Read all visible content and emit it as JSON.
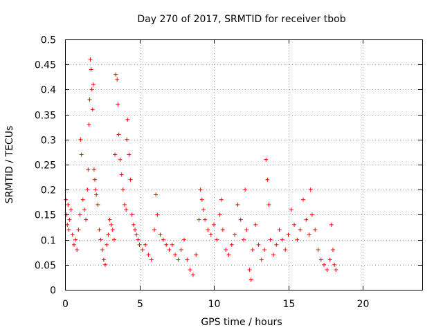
{
  "chart_data": {
    "type": "scatter",
    "title": "Day 270 of 2017, SRMTID for receiver tbob",
    "xlabel": "GPS time / hours",
    "ylabel": "SRMTID / TECUs",
    "xlim": [
      0,
      24
    ],
    "ylim": [
      0,
      0.5
    ],
    "grid": true,
    "marker": "+",
    "marker_color": "#ff0000",
    "x_ticks": [
      {
        "value": 0,
        "label": "0"
      },
      {
        "value": 5,
        "label": "5"
      },
      {
        "value": 10,
        "label": "10"
      },
      {
        "value": 15,
        "label": "15"
      },
      {
        "value": 20,
        "label": "20"
      }
    ],
    "y_ticks": [
      {
        "value": 0,
        "label": "0"
      },
      {
        "value": 0.05,
        "label": "0.05"
      },
      {
        "value": 0.1,
        "label": "0.1"
      },
      {
        "value": 0.15,
        "label": "0.15"
      },
      {
        "value": 0.2,
        "label": "0.2"
      },
      {
        "value": 0.25,
        "label": "0.25"
      },
      {
        "value": 0.3,
        "label": "0.3"
      },
      {
        "value": 0.35,
        "label": "0.35"
      },
      {
        "value": 0.4,
        "label": "0.4"
      },
      {
        "value": 0.45,
        "label": "0.45"
      },
      {
        "value": 0.5,
        "label": "0.5"
      }
    ],
    "series": [
      {
        "name": "SRMTID",
        "points": [
          [
            0.05,
            0.18
          ],
          [
            0.1,
            0.15
          ],
          [
            0.15,
            0.13
          ],
          [
            0.2,
            0.17
          ],
          [
            0.25,
            0.12
          ],
          [
            0.3,
            0.14
          ],
          [
            0.4,
            0.16
          ],
          [
            0.5,
            0.11
          ],
          [
            0.6,
            0.09
          ],
          [
            0.7,
            0.1
          ],
          [
            0.8,
            0.08
          ],
          [
            0.9,
            0.12
          ],
          [
            1.0,
            0.15
          ],
          [
            1.05,
            0.3
          ],
          [
            1.1,
            0.27
          ],
          [
            1.2,
            0.18
          ],
          [
            1.3,
            0.16
          ],
          [
            1.4,
            0.14
          ],
          [
            1.5,
            0.2
          ],
          [
            1.55,
            0.24
          ],
          [
            1.6,
            0.33
          ],
          [
            1.65,
            0.38
          ],
          [
            1.7,
            0.46
          ],
          [
            1.75,
            0.44
          ],
          [
            1.8,
            0.4
          ],
          [
            1.85,
            0.36
          ],
          [
            1.9,
            0.41
          ],
          [
            1.95,
            0.24
          ],
          [
            2.0,
            0.22
          ],
          [
            2.05,
            0.2
          ],
          [
            2.1,
            0.19
          ],
          [
            2.2,
            0.17
          ],
          [
            2.3,
            0.12
          ],
          [
            2.4,
            0.1
          ],
          [
            2.5,
            0.08
          ],
          [
            2.6,
            0.06
          ],
          [
            2.7,
            0.05
          ],
          [
            2.8,
            0.09
          ],
          [
            2.9,
            0.11
          ],
          [
            3.0,
            0.14
          ],
          [
            3.1,
            0.13
          ],
          [
            3.2,
            0.12
          ],
          [
            3.3,
            0.1
          ],
          [
            3.35,
            0.27
          ],
          [
            3.4,
            0.43
          ],
          [
            3.5,
            0.42
          ],
          [
            3.55,
            0.37
          ],
          [
            3.6,
            0.31
          ],
          [
            3.7,
            0.26
          ],
          [
            3.8,
            0.23
          ],
          [
            3.9,
            0.2
          ],
          [
            4.0,
            0.17
          ],
          [
            4.1,
            0.16
          ],
          [
            4.15,
            0.3
          ],
          [
            4.2,
            0.34
          ],
          [
            4.3,
            0.27
          ],
          [
            4.4,
            0.22
          ],
          [
            4.5,
            0.15
          ],
          [
            4.6,
            0.13
          ],
          [
            4.7,
            0.12
          ],
          [
            4.8,
            0.11
          ],
          [
            4.9,
            0.1
          ],
          [
            5.0,
            0.09
          ],
          [
            5.2,
            0.08
          ],
          [
            5.4,
            0.09
          ],
          [
            5.6,
            0.07
          ],
          [
            5.8,
            0.06
          ],
          [
            6.0,
            0.12
          ],
          [
            6.1,
            0.19
          ],
          [
            6.2,
            0.15
          ],
          [
            6.4,
            0.11
          ],
          [
            6.6,
            0.1
          ],
          [
            6.8,
            0.09
          ],
          [
            7.0,
            0.08
          ],
          [
            7.2,
            0.09
          ],
          [
            7.4,
            0.07
          ],
          [
            7.6,
            0.06
          ],
          [
            7.8,
            0.08
          ],
          [
            8.0,
            0.1
          ],
          [
            8.2,
            0.06
          ],
          [
            8.4,
            0.04
          ],
          [
            8.6,
            0.03
          ],
          [
            8.8,
            0.07
          ],
          [
            9.0,
            0.14
          ],
          [
            9.1,
            0.2
          ],
          [
            9.2,
            0.18
          ],
          [
            9.3,
            0.16
          ],
          [
            9.4,
            0.14
          ],
          [
            9.6,
            0.12
          ],
          [
            9.8,
            0.11
          ],
          [
            10.0,
            0.13
          ],
          [
            10.2,
            0.1
          ],
          [
            10.4,
            0.15
          ],
          [
            10.5,
            0.18
          ],
          [
            10.6,
            0.12
          ],
          [
            10.8,
            0.08
          ],
          [
            11.0,
            0.07
          ],
          [
            11.2,
            0.09
          ],
          [
            11.4,
            0.11
          ],
          [
            11.6,
            0.17
          ],
          [
            11.8,
            0.14
          ],
          [
            12.0,
            0.1
          ],
          [
            12.1,
            0.2
          ],
          [
            12.2,
            0.12
          ],
          [
            12.4,
            0.04
          ],
          [
            12.5,
            0.02
          ],
          [
            12.6,
            0.08
          ],
          [
            12.8,
            0.13
          ],
          [
            13.0,
            0.09
          ],
          [
            13.2,
            0.06
          ],
          [
            13.4,
            0.08
          ],
          [
            13.5,
            0.26
          ],
          [
            13.6,
            0.22
          ],
          [
            13.7,
            0.17
          ],
          [
            13.8,
            0.1
          ],
          [
            14.0,
            0.07
          ],
          [
            14.2,
            0.09
          ],
          [
            14.4,
            0.12
          ],
          [
            14.6,
            0.1
          ],
          [
            14.8,
            0.08
          ],
          [
            15.0,
            0.11
          ],
          [
            15.2,
            0.16
          ],
          [
            15.4,
            0.13
          ],
          [
            15.6,
            0.1
          ],
          [
            15.8,
            0.12
          ],
          [
            16.0,
            0.18
          ],
          [
            16.2,
            0.14
          ],
          [
            16.4,
            0.11
          ],
          [
            16.5,
            0.2
          ],
          [
            16.6,
            0.15
          ],
          [
            16.8,
            0.12
          ],
          [
            17.0,
            0.08
          ],
          [
            17.2,
            0.06
          ],
          [
            17.4,
            0.05
          ],
          [
            17.6,
            0.04
          ],
          [
            17.8,
            0.06
          ],
          [
            17.9,
            0.13
          ],
          [
            18.0,
            0.08
          ],
          [
            18.1,
            0.05
          ],
          [
            18.2,
            0.04
          ]
        ]
      }
    ]
  }
}
